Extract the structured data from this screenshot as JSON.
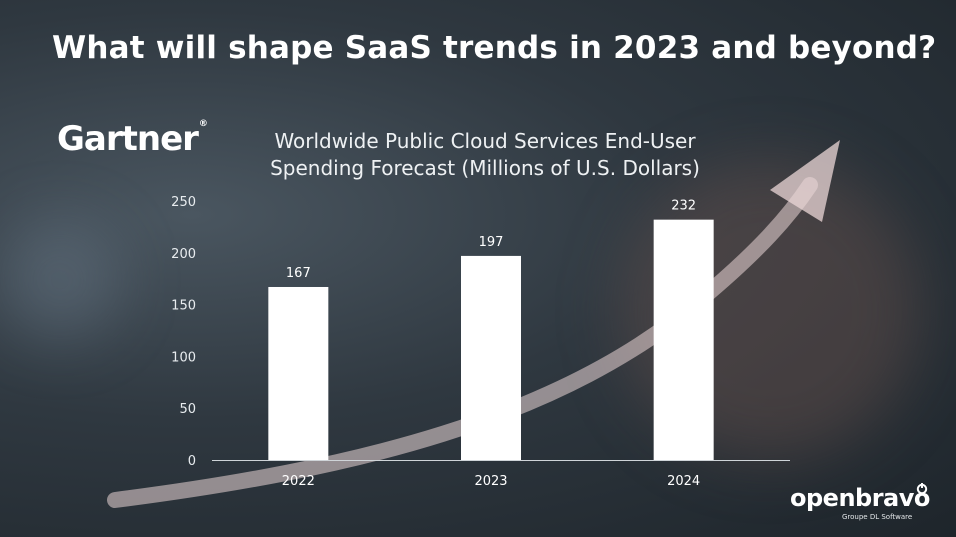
{
  "headline": "What will shape SaaS trends in 2023 and beyond?",
  "gartner_logo": "Gartner",
  "gartner_reg": "®",
  "brand": {
    "name": "openbravo",
    "tagline": "Groupe DL Software"
  },
  "chart_data": {
    "type": "bar",
    "title": "Worldwide Public Cloud Services End-User Spending Forecast (Millions of U.S. Dollars)",
    "categories": [
      "2022",
      "2023",
      "2024"
    ],
    "values": [
      167,
      197,
      232
    ],
    "data_labels": [
      "167",
      "197",
      "232"
    ],
    "ylim": [
      0,
      250
    ],
    "yticks": [
      "0",
      "50",
      "100",
      "150",
      "200",
      "250"
    ],
    "xlabel": "",
    "ylabel": "",
    "grid": false,
    "bar_color": "#ffffff"
  }
}
